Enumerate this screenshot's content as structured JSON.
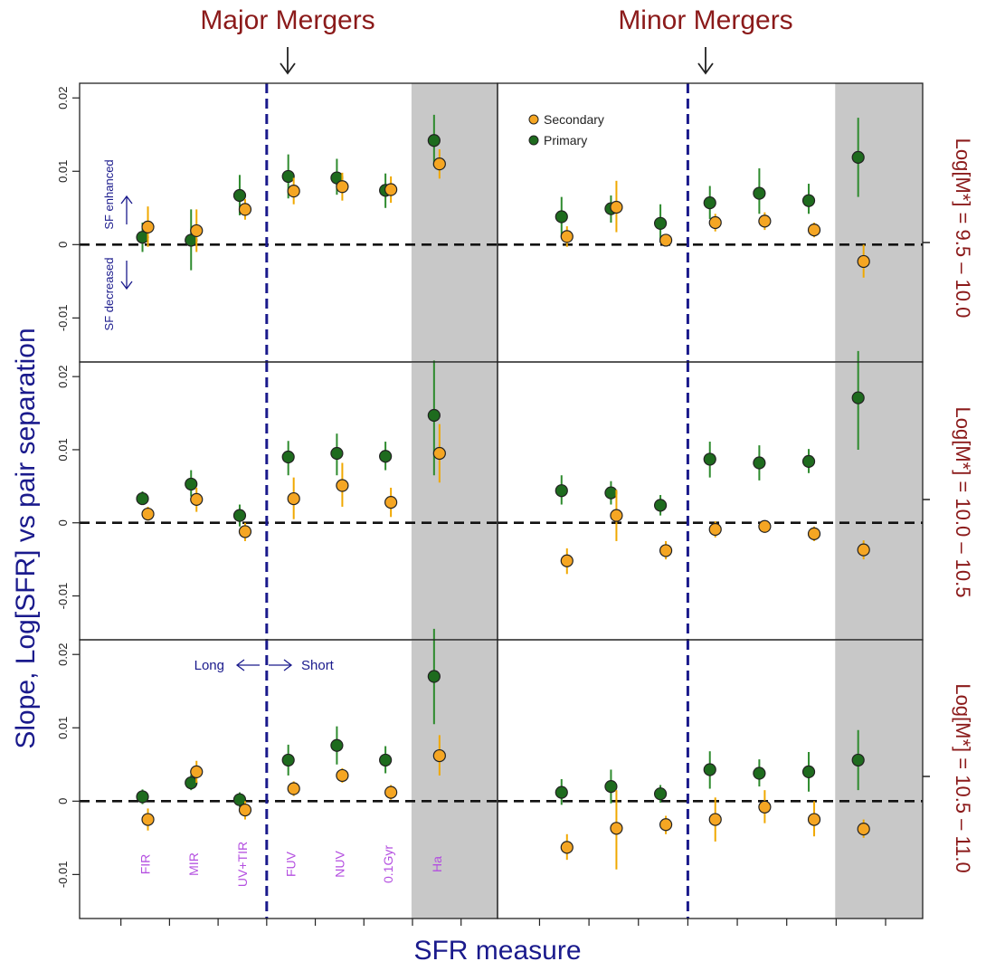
{
  "figure": {
    "col_titles": [
      "Major Mergers",
      "Minor Mergers"
    ],
    "row_labels": [
      "Log[M*] = 9.5 – 10.0",
      "Log[M*] = 10.0 – 10.5",
      "Log[M*] = 10.5 – 11.0"
    ],
    "ylabel": "Slope, Log[SFR] vs pair separation",
    "xlabel": "SFR measure",
    "yticks": [
      "0.02",
      "0.01",
      "0",
      "-0.01"
    ],
    "annotations": {
      "sf_enhanced": "SF enhanced",
      "sf_decreased": "SF decreased",
      "long": "Long",
      "short": "Short"
    }
  },
  "colors": {
    "primary": "#1e6b1e",
    "secondary": "#f5a623",
    "primary_err": "#2e8b2e",
    "secondary_err": "#f0a800",
    "title": "#8b1a1a",
    "axis_label": "#1a1a8c",
    "divider": "#1a1a8c",
    "measure_label": "#b44fe0",
    "shade": "#c8c8c8"
  },
  "chart_data": {
    "type": "scatter",
    "categories": [
      "FIR",
      "MIR",
      "UV+TIR",
      "FUV",
      "NUV",
      "0.1Gyr",
      "Ha"
    ],
    "shaded_category": "Ha",
    "divider_after": "UV+TIR",
    "ylim": [
      -0.016,
      0.022
    ],
    "grid": false,
    "legend": {
      "placement": "top-left of Minor Mergers top panel",
      "entries": [
        "Secondary",
        "Primary"
      ]
    },
    "series_names": [
      "Secondary",
      "Primary"
    ],
    "panels": [
      {
        "column": "Major Mergers",
        "row": "Log[M*] = 9.5 – 10.0",
        "primary": [
          [
            0.001,
            -0.001,
            0.003
          ],
          [
            0.0006,
            -0.0035,
            0.0048
          ],
          [
            0.0067,
            0.004,
            0.0095
          ],
          [
            0.0093,
            0.0063,
            0.0123
          ],
          [
            0.0091,
            0.0068,
            0.0117
          ],
          [
            0.0074,
            0.005,
            0.0097
          ],
          [
            0.0142,
            0.0107,
            0.0177
          ]
        ],
        "secondary": [
          [
            0.0024,
            -0.0003,
            0.0052
          ],
          [
            0.0019,
            -0.001,
            0.0048
          ],
          [
            0.0048,
            0.0034,
            0.0062
          ],
          [
            0.0073,
            0.0055,
            0.0091
          ],
          [
            0.0079,
            0.006,
            0.0098
          ],
          [
            0.0075,
            0.0057,
            0.0093
          ],
          [
            0.011,
            0.009,
            0.013
          ]
        ]
      },
      {
        "column": "Minor Mergers",
        "row": "Log[M*] = 9.5 – 10.0",
        "primary": [
          [
            0.0038,
            0.001,
            0.0065
          ],
          [
            0.0049,
            0.003,
            0.0067
          ],
          [
            0.0029,
            0.0003,
            0.0055
          ],
          [
            0.0057,
            0.0035,
            0.008
          ],
          [
            0.007,
            0.0042,
            0.0104
          ],
          [
            0.006,
            0.0042,
            0.0083
          ],
          [
            0.0119,
            0.0065,
            0.0173
          ]
        ],
        "secondary": [
          [
            0.0011,
            -0.0003,
            0.0025
          ],
          [
            0.0051,
            0.0017,
            0.0087
          ],
          [
            0.0006,
            -0.0002,
            0.0014
          ],
          [
            0.003,
            0.0018,
            0.0042
          ],
          [
            0.0032,
            0.002,
            0.0044
          ],
          [
            0.002,
            0.001,
            0.003
          ],
          [
            -0.0023,
            -0.0045,
            0.0
          ]
        ]
      },
      {
        "column": "Major Mergers",
        "row": "Log[M*] = 10.0 – 10.5",
        "primary": [
          [
            0.0033,
            0.0025,
            0.0043
          ],
          [
            0.0053,
            0.0036,
            0.0072
          ],
          [
            0.001,
            -0.0005,
            0.0025
          ],
          [
            0.009,
            0.0065,
            0.0112
          ],
          [
            0.0095,
            0.0065,
            0.0122
          ],
          [
            0.0091,
            0.0072,
            0.0111
          ],
          [
            0.0147,
            0.0065,
            0.0222
          ]
        ],
        "secondary": [
          [
            0.0012,
            0.0003,
            0.0022
          ],
          [
            0.0032,
            0.0015,
            0.0048
          ],
          [
            -0.0012,
            -0.0025,
            0.0
          ],
          [
            0.0033,
            0.0005,
            0.0062
          ],
          [
            0.0051,
            0.0022,
            0.0082
          ],
          [
            0.0028,
            0.0008,
            0.0048
          ],
          [
            0.0095,
            0.0055,
            0.0135
          ]
        ]
      },
      {
        "column": "Minor Mergers",
        "row": "Log[M*] = 10.0 – 10.5",
        "primary": [
          [
            0.0044,
            0.0025,
            0.0065
          ],
          [
            0.0041,
            0.0025,
            0.0057
          ],
          [
            0.0024,
            0.001,
            0.0038
          ],
          [
            0.0087,
            0.0062,
            0.0111
          ],
          [
            0.0082,
            0.0058,
            0.0106
          ],
          [
            0.0084,
            0.0068,
            0.0101
          ],
          [
            0.0171,
            0.01,
            0.0235
          ]
        ],
        "secondary": [
          [
            -0.0052,
            -0.007,
            -0.0035
          ],
          [
            0.001,
            -0.0025,
            0.0045
          ],
          [
            -0.0038,
            -0.005,
            -0.0025
          ],
          [
            -0.0009,
            -0.002,
            0.0002
          ],
          [
            -0.0005,
            -0.0012,
            0.0002
          ],
          [
            -0.0015,
            -0.0025,
            -0.0005
          ],
          [
            -0.0037,
            -0.005,
            -0.0024
          ]
        ]
      },
      {
        "column": "Major Mergers",
        "row": "Log[M*] = 10.5 – 11.0",
        "primary": [
          [
            0.0006,
            -0.0004,
            0.0016
          ],
          [
            0.0025,
            0.0015,
            0.0036
          ],
          [
            0.0002,
            -0.0008,
            0.0012
          ],
          [
            0.0056,
            0.0035,
            0.0077
          ],
          [
            0.0076,
            0.005,
            0.0102
          ],
          [
            0.0056,
            0.0038,
            0.0075
          ],
          [
            0.017,
            0.0105,
            0.0235
          ]
        ],
        "secondary": [
          [
            -0.0025,
            -0.004,
            -0.001
          ],
          [
            0.004,
            0.0025,
            0.0055
          ],
          [
            -0.0012,
            -0.0025,
            0.0
          ],
          [
            0.0017,
            0.0007,
            0.0027
          ],
          [
            0.0035,
            0.0025,
            0.0045
          ],
          [
            0.0012,
            0.0002,
            0.0022
          ],
          [
            0.0062,
            0.0035,
            0.009
          ]
        ]
      },
      {
        "column": "Minor Mergers",
        "row": "Log[M*] = 10.5 – 11.0",
        "primary": [
          [
            0.0012,
            -0.0005,
            0.003
          ],
          [
            0.002,
            -0.0003,
            0.0043
          ],
          [
            0.001,
            -0.0002,
            0.0022
          ],
          [
            0.0043,
            0.0017,
            0.0068
          ],
          [
            0.0038,
            0.002,
            0.0057
          ],
          [
            0.004,
            0.0013,
            0.0067
          ],
          [
            0.0056,
            0.0015,
            0.0097
          ]
        ],
        "secondary": [
          [
            -0.0063,
            -0.008,
            -0.0045
          ],
          [
            -0.0037,
            -0.0093,
            0.0015
          ],
          [
            -0.0032,
            -0.0045,
            -0.002
          ],
          [
            -0.0025,
            -0.0055,
            0.0005
          ],
          [
            -0.0008,
            -0.003,
            0.0015
          ],
          [
            -0.0025,
            -0.0048,
            0.0
          ],
          [
            -0.0038,
            -0.005,
            -0.0025
          ]
        ]
      }
    ]
  }
}
